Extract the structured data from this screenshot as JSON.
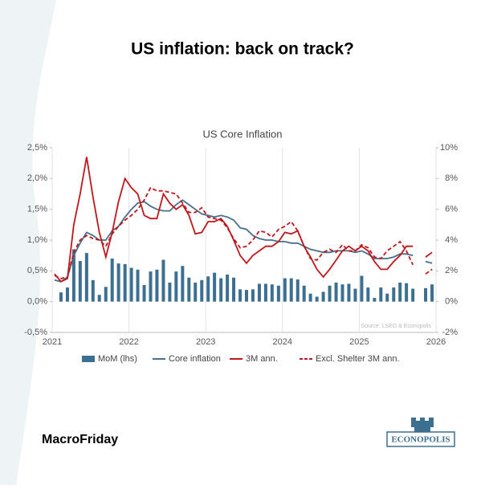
{
  "page_title": "US inflation: back on track?",
  "brand": "MacroFriday",
  "logo": "ECONOPOLIS",
  "chart_data": {
    "type": "bar-line",
    "title": "US Core Inflation",
    "source": "Source: LSEG & Econopolis",
    "x": [
      2021.0,
      2021.083,
      2021.167,
      2021.25,
      2021.333,
      2021.417,
      2021.5,
      2021.583,
      2021.667,
      2021.75,
      2021.833,
      2021.917,
      2022.0,
      2022.083,
      2022.167,
      2022.25,
      2022.333,
      2022.417,
      2022.5,
      2022.583,
      2022.667,
      2022.75,
      2022.833,
      2022.917,
      2023.0,
      2023.083,
      2023.167,
      2023.25,
      2023.333,
      2023.417,
      2023.5,
      2023.583,
      2023.667,
      2023.75,
      2023.833,
      2023.917,
      2024.0,
      2024.083,
      2024.167,
      2024.25,
      2024.333,
      2024.417,
      2024.5,
      2024.583,
      2024.667,
      2024.75,
      2024.833,
      2024.917,
      2025.0,
      2025.083,
      2025.167,
      2025.25,
      2025.333,
      2025.417,
      2025.5,
      2025.583,
      2025.667,
      2025.75,
      2025.833,
      2025.917
    ],
    "xlim": [
      2021,
      2026
    ],
    "xticks": [
      2021,
      2022,
      2023,
      2024,
      2025,
      2026
    ],
    "ylim": [
      -0.5,
      2.5
    ],
    "yticks": [
      {
        "value": -0.5,
        "label": "-0,5%"
      },
      {
        "value": 0,
        "label": "0,0%"
      },
      {
        "value": 0.5,
        "label": "0,5%"
      },
      {
        "value": 1,
        "label": "1,0%"
      },
      {
        "value": 1.5,
        "label": "1,5%"
      },
      {
        "value": 2,
        "label": "2,0%"
      },
      {
        "value": 2.5,
        "label": "2,5%"
      }
    ],
    "y2lim": [
      -2,
      10
    ],
    "y2ticks": [
      {
        "value": -2,
        "label": "-2%"
      },
      {
        "value": 0,
        "label": "0%"
      },
      {
        "value": 2,
        "label": "2%"
      },
      {
        "value": 4,
        "label": "4%"
      },
      {
        "value": 6,
        "label": "6%"
      },
      {
        "value": 8,
        "label": "8%"
      },
      {
        "value": 10,
        "label": "10%"
      }
    ],
    "grid": true,
    "series": [
      {
        "name": "MoM (lhs)",
        "kind": "bar",
        "color": "#3d6f91",
        "values": [
          0.0,
          0.15,
          0.23,
          0.85,
          0.66,
          0.79,
          0.35,
          0.11,
          0.24,
          0.7,
          0.62,
          0.61,
          0.55,
          0.52,
          0.27,
          0.49,
          0.52,
          0.68,
          0.31,
          0.49,
          0.58,
          0.39,
          0.31,
          0.35,
          0.41,
          0.47,
          0.38,
          0.44,
          0.39,
          0.2,
          0.19,
          0.2,
          0.29,
          0.29,
          0.28,
          0.26,
          0.38,
          0.38,
          0.36,
          0.26,
          0.13,
          0.08,
          0.16,
          0.26,
          0.31,
          0.28,
          0.29,
          0.21,
          0.42,
          0.23,
          0.06,
          0.23,
          0.13,
          0.23,
          0.31,
          0.3,
          0.21,
          null,
          0.22,
          0.28
        ]
      },
      {
        "name": "Core inflation",
        "kind": "line",
        "axis": "y2",
        "color": "#46708c",
        "values": [
          1.4,
          1.3,
          1.6,
          3.0,
          3.8,
          4.5,
          4.3,
          4.0,
          4.0,
          4.6,
          4.9,
          5.5,
          6.0,
          6.4,
          6.5,
          6.2,
          6.0,
          5.9,
          5.9,
          6.3,
          6.6,
          6.3,
          6.0,
          5.7,
          5.6,
          5.5,
          5.6,
          5.5,
          5.3,
          4.8,
          4.7,
          4.3,
          4.1,
          4.0,
          4.0,
          3.9,
          3.9,
          3.8,
          3.8,
          3.6,
          3.4,
          3.3,
          3.2,
          3.2,
          3.3,
          3.3,
          3.3,
          3.2,
          3.3,
          3.1,
          2.8,
          2.8,
          2.8,
          2.9,
          3.1,
          3.1,
          3.0,
          null,
          2.6,
          2.5
        ]
      },
      {
        "name": "3M ann.",
        "kind": "line",
        "axis": "y2",
        "color": "#c0161c",
        "values": [
          1.8,
          1.3,
          1.5,
          5.0,
          7.0,
          9.4,
          6.8,
          4.5,
          2.9,
          4.5,
          6.5,
          8.0,
          7.4,
          7.0,
          5.6,
          5.4,
          5.4,
          7.0,
          6.4,
          6.0,
          6.3,
          5.6,
          4.4,
          4.5,
          5.2,
          5.2,
          5.4,
          4.9,
          4.0,
          3.0,
          2.5,
          3.0,
          3.3,
          3.6,
          3.6,
          3.9,
          4.5,
          4.4,
          4.6,
          3.6,
          2.9,
          2.1,
          1.6,
          2.1,
          2.7,
          3.3,
          3.6,
          3.3,
          3.6,
          3.3,
          2.6,
          2.1,
          2.1,
          2.6,
          3.0,
          3.6,
          3.6,
          null,
          2.9,
          3.2
        ]
      },
      {
        "name": "Excl. Shelter 3M ann.",
        "kind": "line",
        "axis": "y2",
        "dashed": true,
        "color": "#c0161c",
        "values": [
          1.7,
          1.5,
          1.6,
          3.2,
          4.0,
          4.3,
          4.1,
          4.0,
          3.6,
          4.4,
          4.9,
          5.3,
          5.6,
          6.0,
          6.6,
          7.4,
          7.2,
          7.2,
          7.1,
          7.0,
          6.4,
          5.8,
          5.8,
          6.1,
          5.5,
          5.4,
          5.3,
          4.8,
          4.1,
          3.5,
          3.6,
          4.0,
          4.6,
          4.5,
          4.2,
          4.7,
          4.9,
          5.2,
          4.6,
          3.6,
          2.8,
          2.7,
          3.2,
          3.4,
          3.2,
          3.7,
          3.3,
          3.3,
          3.7,
          3.5,
          2.9,
          2.8,
          3.3,
          3.6,
          3.9,
          3.3,
          2.4,
          null,
          1.8,
          2.1
        ]
      }
    ]
  }
}
